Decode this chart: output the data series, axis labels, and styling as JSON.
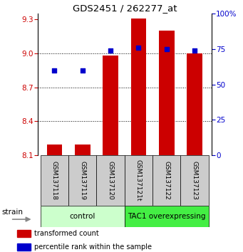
{
  "title": "GDS2451 / 262277_at",
  "samples": [
    "GSM137118",
    "GSM137119",
    "GSM137120",
    "GSM137121t",
    "GSM137122",
    "GSM137123"
  ],
  "red_bars": [
    8.19,
    8.19,
    8.98,
    9.31,
    9.2,
    9.0
  ],
  "blue_dots": [
    60,
    60,
    74,
    76,
    75,
    74
  ],
  "ylim_left": [
    8.1,
    9.35
  ],
  "ylim_right": [
    0,
    100
  ],
  "yticks_left": [
    8.1,
    8.4,
    8.7,
    9.0,
    9.3
  ],
  "yticks_right": [
    0,
    25,
    50,
    75,
    100
  ],
  "ytick_labels_right": [
    "0",
    "25",
    "50",
    "75",
    "100%"
  ],
  "hgrid_vals": [
    9.0,
    8.7,
    8.4
  ],
  "bar_width": 0.55,
  "bar_color": "#cc0000",
  "dot_color": "#0000cc",
  "bar_bottom": 8.1,
  "groups": [
    {
      "label": "control",
      "color": "#ccffcc"
    },
    {
      "label": "TAC1 overexpressing",
      "color": "#44ee44"
    }
  ],
  "legend_items": [
    {
      "color": "#cc0000",
      "label": "transformed count"
    },
    {
      "color": "#0000cc",
      "label": "percentile rank within the sample"
    }
  ],
  "strain_label": "strain",
  "left_tick_color": "#cc0000",
  "right_tick_color": "#0000cc",
  "background_color": "#ffffff"
}
